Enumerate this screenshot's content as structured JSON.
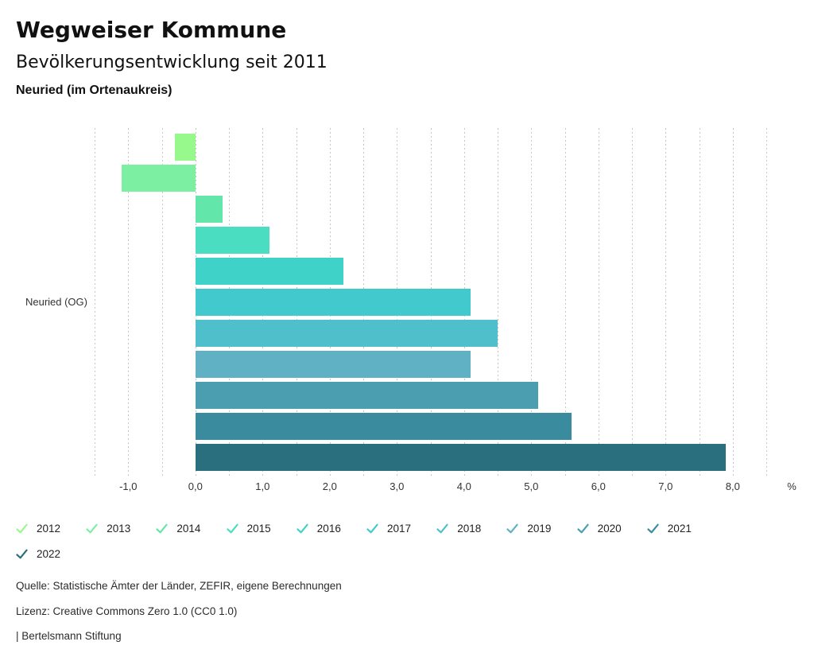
{
  "header": {
    "title": "Wegweiser Kommune",
    "subtitle": "Bevölkerungsentwicklung seit 2011",
    "region": "Neuried (im Ortenaukreis)"
  },
  "chart_data": {
    "type": "bar",
    "orientation": "horizontal",
    "group_label": "Neuried (OG)",
    "axis_unit": "%",
    "xlim": [
      -1.5,
      8.5
    ],
    "gridline_step": 0.5,
    "grid_on": true,
    "legend_position": "bottom",
    "x_ticks": [
      {
        "value": -1,
        "label": "-1,0"
      },
      {
        "value": 0,
        "label": "0,0"
      },
      {
        "value": 1,
        "label": "1,0"
      },
      {
        "value": 2,
        "label": "2,0"
      },
      {
        "value": 3,
        "label": "3,0"
      },
      {
        "value": 4,
        "label": "4,0"
      },
      {
        "value": 5,
        "label": "5,0"
      },
      {
        "value": 6,
        "label": "6,0"
      },
      {
        "value": 7,
        "label": "7,0"
      },
      {
        "value": 8,
        "label": "8,0"
      }
    ],
    "series": [
      {
        "year": "2012",
        "value": -0.3,
        "color": "#97F88C"
      },
      {
        "year": "2013",
        "value": -1.1,
        "color": "#7CEFA3"
      },
      {
        "year": "2014",
        "value": 0.4,
        "color": "#62E6A9"
      },
      {
        "year": "2015",
        "value": 1.1,
        "color": "#4ADDC1"
      },
      {
        "year": "2016",
        "value": 2.2,
        "color": "#3ED2C8"
      },
      {
        "year": "2017",
        "value": 4.1,
        "color": "#42C9CE"
      },
      {
        "year": "2018",
        "value": 4.5,
        "color": "#4FBFCB"
      },
      {
        "year": "2019",
        "value": 4.1,
        "color": "#5FB1C3"
      },
      {
        "year": "2020",
        "value": 5.1,
        "color": "#4A9EB0"
      },
      {
        "year": "2021",
        "value": 5.6,
        "color": "#3B8B9E"
      },
      {
        "year": "2022",
        "value": 7.9,
        "color": "#2A6F7D"
      }
    ]
  },
  "footer": {
    "source": "Quelle: Statistische Ämter der Länder, ZEFIR, eigene Berechnungen",
    "license": "Lizenz: Creative Commons Zero 1.0 (CC0 1.0)",
    "attribution": "| Bertelsmann Stiftung"
  }
}
